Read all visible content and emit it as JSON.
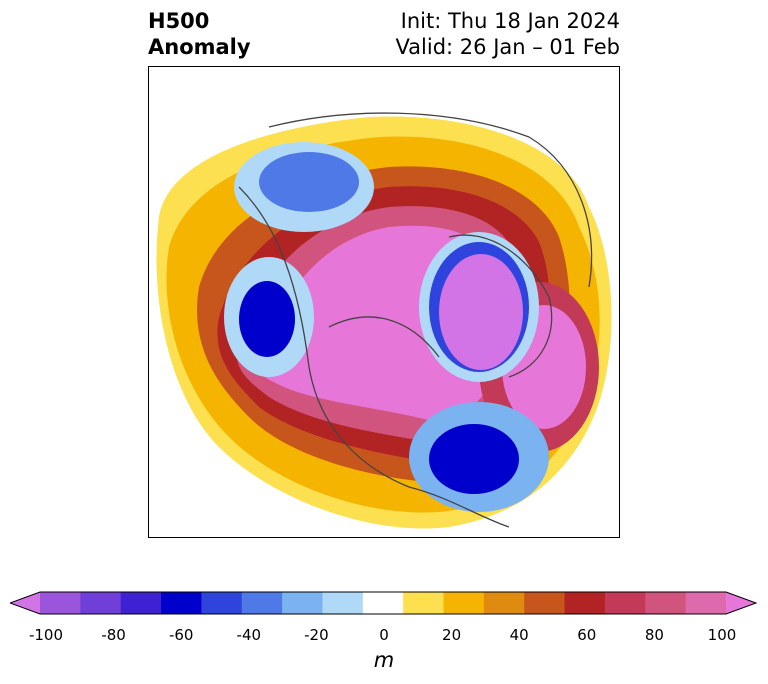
{
  "header": {
    "title_line1": "H500",
    "title_line2": "Anomaly",
    "init": "Init: Thu 18 Jan 2024",
    "valid": "Valid: 26 Jan – 01 Feb"
  },
  "colorbar": {
    "units": "m",
    "ticks": [
      "-100",
      "-80",
      "-60",
      "-40",
      "-20",
      "0",
      "20",
      "40",
      "60",
      "80",
      "100"
    ],
    "colors": [
      "#d274e6",
      "#9b55dc",
      "#6f3fd8",
      "#3f21d4",
      "#0000cc",
      "#2e44dc",
      "#4f79e6",
      "#7bb2f0",
      "#b0d9f8",
      "#ffffff",
      "#fde04f",
      "#f4b400",
      "#df8b10",
      "#c7561c",
      "#b22424",
      "#c23a58",
      "#d0547e",
      "#dc6aac",
      "#e676d8"
    ]
  }
}
